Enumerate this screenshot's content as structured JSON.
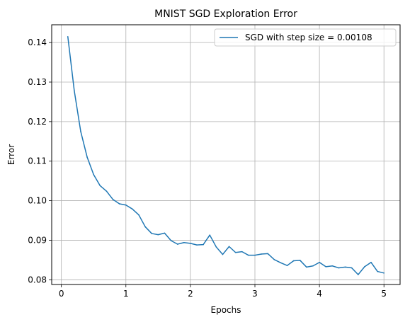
{
  "chart_data": {
    "type": "line",
    "title": "MNIST SGD Exploration Error",
    "xlabel": "Epochs",
    "ylabel": "Error",
    "xlim": [
      -0.15,
      5.25
    ],
    "ylim": [
      0.0788,
      0.1445
    ],
    "xticks": [
      0,
      1,
      2,
      3,
      4,
      5
    ],
    "xtick_labels": [
      "0",
      "1",
      "2",
      "3",
      "4",
      "5"
    ],
    "yticks": [
      0.08,
      0.09,
      0.1,
      0.11,
      0.12,
      0.13,
      0.14
    ],
    "ytick_labels": [
      "0.08",
      "0.09",
      "0.10",
      "0.11",
      "0.12",
      "0.13",
      "0.14"
    ],
    "grid": true,
    "legend_position": "top-right",
    "series": [
      {
        "name": "SGD with step size = 0.00108",
        "color": "#1f77b4",
        "x": [
          0.1,
          0.2,
          0.3,
          0.4,
          0.5,
          0.6,
          0.7,
          0.8,
          0.9,
          1.0,
          1.1,
          1.2,
          1.3,
          1.4,
          1.5,
          1.6,
          1.7,
          1.8,
          1.9,
          2.0,
          2.1,
          2.2,
          2.3,
          2.4,
          2.5,
          2.6,
          2.7,
          2.8,
          2.9,
          3.0,
          3.1,
          3.2,
          3.3,
          3.4,
          3.5,
          3.6,
          3.7,
          3.8,
          3.9,
          4.0,
          4.1,
          4.2,
          4.3,
          4.4,
          4.5,
          4.6,
          4.7,
          4.8,
          4.9,
          5.0
        ],
        "y": [
          0.1415,
          0.1278,
          0.1175,
          0.111,
          0.1066,
          0.1038,
          0.1024,
          0.1003,
          0.0992,
          0.0989,
          0.0979,
          0.0964,
          0.0934,
          0.0917,
          0.0914,
          0.0918,
          0.0899,
          0.089,
          0.0894,
          0.0892,
          0.0888,
          0.0889,
          0.0913,
          0.0883,
          0.0864,
          0.0884,
          0.0869,
          0.0871,
          0.0862,
          0.0862,
          0.0865,
          0.0866,
          0.0851,
          0.0843,
          0.0836,
          0.0848,
          0.0849,
          0.0832,
          0.0835,
          0.0844,
          0.0833,
          0.0835,
          0.083,
          0.0832,
          0.083,
          0.0813,
          0.0833,
          0.0844,
          0.0821,
          0.0817
        ]
      }
    ]
  }
}
